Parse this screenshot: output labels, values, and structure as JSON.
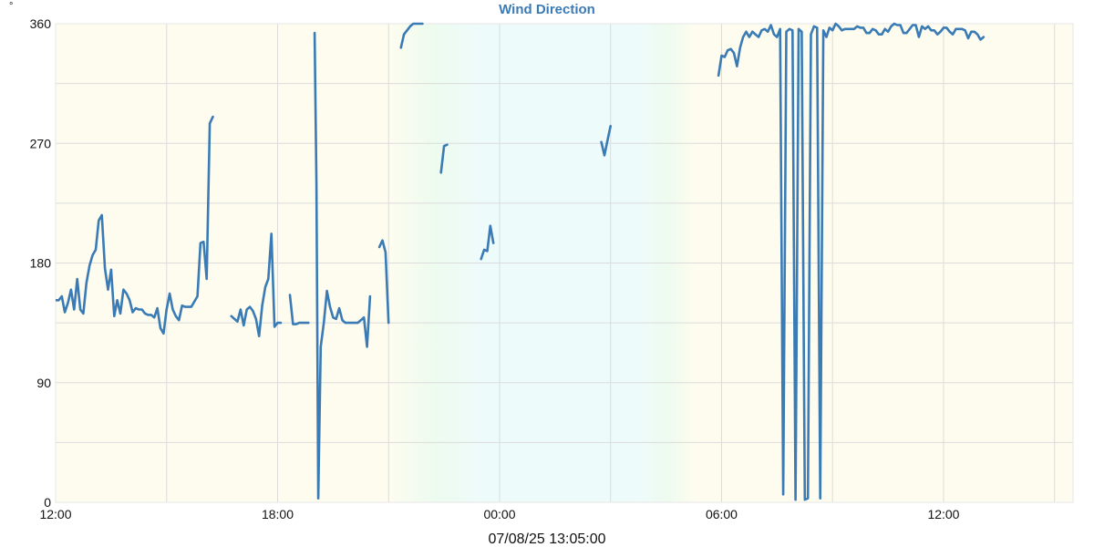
{
  "chart_data": {
    "type": "line",
    "title": "Wind Direction",
    "ylabel": "°",
    "xlabel": "",
    "ylim": [
      0,
      360
    ],
    "xlim": [
      "07/07/25 12:00",
      "07/08/25 15:30"
    ],
    "y_ticks": [
      {
        "value": 0,
        "label": "0"
      },
      {
        "value": 90,
        "label": "90"
      },
      {
        "value": 180,
        "label": "180"
      },
      {
        "value": 270,
        "label": "270"
      },
      {
        "value": 360,
        "label": "360"
      }
    ],
    "x_ticks": [
      {
        "value": "07/07/25 12:00",
        "label": "12:00"
      },
      {
        "value": "07/07/25 18:00",
        "label": "18:00"
      },
      {
        "value": "07/08/25 00:00",
        "label": "00:00"
      },
      {
        "value": "07/08/25 06:00",
        "label": "06:00"
      },
      {
        "value": "07/08/25 12:00",
        "label": "12:00"
      }
    ],
    "grid": true,
    "timestamp": "07/08/25 13:05:00",
    "background_bands": [
      {
        "start": "07/07/25 12:00",
        "end": "07/07/25 21:00",
        "kind": "day"
      },
      {
        "start": "07/07/25 21:00",
        "end": "07/07/25 23:30",
        "kind": "dusk"
      },
      {
        "start": "07/07/25 23:30",
        "end": "07/08/25 03:45",
        "kind": "night"
      },
      {
        "start": "07/08/25 03:45",
        "end": "07/08/25 05:15",
        "kind": "dawn"
      },
      {
        "start": "07/08/25 05:15",
        "end": "07/08/25 15:30",
        "kind": "day"
      }
    ],
    "series": [
      {
        "segments": [
          [
            [
              "07/07/25 12:00",
              152
            ],
            [
              "07/07/25 12:05",
              152
            ],
            [
              "07/07/25 12:10",
              155
            ],
            [
              "07/07/25 12:15",
              143
            ],
            [
              "07/07/25 12:20",
              150
            ],
            [
              "07/07/25 12:25",
              160
            ],
            [
              "07/07/25 12:30",
              145
            ],
            [
              "07/07/25 12:35",
              168
            ],
            [
              "07/07/25 12:40",
              145
            ],
            [
              "07/07/25 12:45",
              142
            ],
            [
              "07/07/25 12:50",
              165
            ],
            [
              "07/07/25 12:55",
              178
            ],
            [
              "07/07/25 13:00",
              186
            ],
            [
              "07/07/25 13:05",
              190
            ],
            [
              "07/07/25 13:10",
              212
            ],
            [
              "07/07/25 13:15",
              216
            ],
            [
              "07/07/25 13:20",
              176
            ],
            [
              "07/07/25 13:25",
              160
            ],
            [
              "07/07/25 13:30",
              175
            ],
            [
              "07/07/25 13:35",
              140
            ],
            [
              "07/07/25 13:40",
              152
            ],
            [
              "07/07/25 13:45",
              142
            ],
            [
              "07/07/25 13:50",
              160
            ],
            [
              "07/07/25 13:55",
              157
            ],
            [
              "07/07/25 14:00",
              152
            ],
            [
              "07/07/25 14:05",
              143
            ],
            [
              "07/07/25 14:10",
              146
            ],
            [
              "07/07/25 14:15",
              145
            ],
            [
              "07/07/25 14:20",
              145
            ],
            [
              "07/07/25 14:25",
              142
            ],
            [
              "07/07/25 14:30",
              141
            ],
            [
              "07/07/25 14:35",
              141
            ],
            [
              "07/07/25 14:40",
              139
            ],
            [
              "07/07/25 14:45",
              146
            ],
            [
              "07/07/25 14:50",
              131
            ],
            [
              "07/07/25 14:55",
              127
            ],
            [
              "07/07/25 15:00",
              145
            ],
            [
              "07/07/25 15:05",
              157
            ],
            [
              "07/07/25 15:10",
              145
            ],
            [
              "07/07/25 15:15",
              140
            ],
            [
              "07/07/25 15:20",
              137
            ],
            [
              "07/07/25 15:25",
              148
            ],
            [
              "07/07/25 15:30",
              147
            ],
            [
              "07/07/25 15:35",
              147
            ],
            [
              "07/07/25 15:40",
              147
            ],
            [
              "07/07/25 15:45",
              151
            ],
            [
              "07/07/25 15:50",
              155
            ],
            [
              "07/07/25 15:55",
              195
            ],
            [
              "07/07/25 16:00",
              196
            ],
            [
              "07/07/25 16:05",
              168
            ],
            [
              "07/07/25 16:10",
              285
            ],
            [
              "07/07/25 16:15",
              290
            ]
          ],
          [
            [
              "07/07/25 16:45",
              140
            ],
            [
              "07/07/25 16:50",
              138
            ],
            [
              "07/07/25 16:55",
              136
            ],
            [
              "07/07/25 17:00",
              145
            ],
            [
              "07/07/25 17:05",
              133
            ],
            [
              "07/07/25 17:10",
              145
            ],
            [
              "07/07/25 17:15",
              147
            ],
            [
              "07/07/25 17:20",
              144
            ],
            [
              "07/07/25 17:25",
              138
            ],
            [
              "07/07/25 17:30",
              125
            ],
            [
              "07/07/25 17:35",
              148
            ],
            [
              "07/07/25 17:40",
              162
            ],
            [
              "07/07/25 17:45",
              168
            ],
            [
              "07/07/25 17:50",
              202
            ],
            [
              "07/07/25 17:55",
              132
            ],
            [
              "07/07/25 18:00",
              135
            ],
            [
              "07/07/25 18:05",
              135
            ]
          ],
          [
            [
              "07/07/25 18:20",
              156
            ],
            [
              "07/07/25 18:25",
              134
            ],
            [
              "07/07/25 18:30",
              134
            ],
            [
              "07/07/25 18:35",
              135
            ],
            [
              "07/07/25 18:40",
              135
            ],
            [
              "07/07/25 18:45",
              135
            ],
            [
              "07/07/25 18:50",
              135
            ]
          ],
          [
            [
              "07/07/25 19:00",
              353
            ],
            [
              "07/07/25 19:03",
              240
            ],
            [
              "07/07/25 19:06",
              3
            ],
            [
              "07/07/25 19:10",
              117
            ],
            [
              "07/07/25 19:15",
              135
            ],
            [
              "07/07/25 19:20",
              159
            ],
            [
              "07/07/25 19:25",
              147
            ],
            [
              "07/07/25 19:30",
              139
            ],
            [
              "07/07/25 19:35",
              138
            ],
            [
              "07/07/25 19:40",
              146
            ],
            [
              "07/07/25 19:45",
              137
            ],
            [
              "07/07/25 19:50",
              135
            ],
            [
              "07/07/25 19:55",
              135
            ],
            [
              "07/07/25 20:00",
              135
            ],
            [
              "07/07/25 20:05",
              135
            ],
            [
              "07/07/25 20:10",
              135
            ],
            [
              "07/07/25 20:15",
              137
            ],
            [
              "07/07/25 20:20",
              139
            ],
            [
              "07/07/25 20:25",
              117
            ],
            [
              "07/07/25 20:30",
              155
            ]
          ],
          [
            [
              "07/07/25 20:45",
              192
            ],
            [
              "07/07/25 20:50",
              197
            ],
            [
              "07/07/25 20:55",
              188
            ],
            [
              "07/07/25 21:00",
              135
            ]
          ],
          [
            [
              "07/07/25 21:20",
              342
            ],
            [
              "07/07/25 21:25",
              352
            ],
            [
              "07/07/25 21:30",
              355
            ],
            [
              "07/07/25 21:35",
              358
            ],
            [
              "07/07/25 21:40",
              360
            ],
            [
              "07/07/25 21:45",
              360
            ],
            [
              "07/07/25 21:50",
              360
            ],
            [
              "07/07/25 21:55",
              360
            ]
          ],
          [
            [
              "07/07/25 22:25",
              248
            ],
            [
              "07/07/25 22:30",
              268
            ],
            [
              "07/07/25 22:35",
              269
            ]
          ],
          [
            [
              "07/07/25 23:30",
              183
            ],
            [
              "07/07/25 23:35",
              190
            ],
            [
              "07/07/25 23:40",
              189
            ],
            [
              "07/07/25 23:45",
              208
            ],
            [
              "07/07/25 23:50",
              195
            ]
          ],
          [
            [
              "07/08/25 02:45",
              271
            ],
            [
              "07/08/25 02:50",
              261
            ],
            [
              "07/08/25 02:55",
              272
            ],
            [
              "07/08/25 03:00",
              283
            ]
          ],
          [
            [
              "07/08/25 05:55",
              321
            ],
            [
              "07/08/25 06:00",
              336
            ],
            [
              "07/08/25 06:05",
              335
            ],
            [
              "07/08/25 06:10",
              340
            ],
            [
              "07/08/25 06:15",
              341
            ],
            [
              "07/08/25 06:20",
              338
            ],
            [
              "07/08/25 06:25",
              328
            ],
            [
              "07/08/25 06:30",
              342
            ],
            [
              "07/08/25 06:35",
              350
            ],
            [
              "07/08/25 06:40",
              354
            ],
            [
              "07/08/25 06:45",
              350
            ],
            [
              "07/08/25 06:50",
              354
            ],
            [
              "07/08/25 06:55",
              352
            ],
            [
              "07/08/25 07:00",
              350
            ],
            [
              "07/08/25 07:05",
              355
            ],
            [
              "07/08/25 07:10",
              356
            ],
            [
              "07/08/25 07:15",
              354
            ],
            [
              "07/08/25 07:20",
              359
            ],
            [
              "07/08/25 07:25",
              352
            ],
            [
              "07/08/25 07:30",
              350
            ],
            [
              "07/08/25 07:35",
              356
            ],
            [
              "07/08/25 07:40",
              6
            ],
            [
              "07/08/25 07:45",
              354
            ],
            [
              "07/08/25 07:50",
              356
            ],
            [
              "07/08/25 07:55",
              355
            ],
            [
              "07/08/25 08:00",
              2
            ],
            [
              "07/08/25 08:05",
              356
            ],
            [
              "07/08/25 08:10",
              354
            ],
            [
              "07/08/25 08:15",
              2
            ],
            [
              "07/08/25 08:20",
              3
            ],
            [
              "07/08/25 08:25",
              352
            ],
            [
              "07/08/25 08:30",
              358
            ],
            [
              "07/08/25 08:35",
              357
            ],
            [
              "07/08/25 08:40",
              3
            ],
            [
              "07/08/25 08:45",
              355
            ],
            [
              "07/08/25 08:50",
              350
            ],
            [
              "07/08/25 08:55",
              357
            ],
            [
              "07/08/25 09:00",
              355
            ],
            [
              "07/08/25 09:05",
              360
            ],
            [
              "07/08/25 09:10",
              358
            ],
            [
              "07/08/25 09:15",
              355
            ],
            [
              "07/08/25 09:20",
              356
            ],
            [
              "07/08/25 09:25",
              356
            ],
            [
              "07/08/25 09:30",
              356
            ],
            [
              "07/08/25 09:35",
              356
            ],
            [
              "07/08/25 09:40",
              358
            ],
            [
              "07/08/25 09:45",
              357
            ],
            [
              "07/08/25 09:50",
              357
            ],
            [
              "07/08/25 09:55",
              353
            ],
            [
              "07/08/25 10:00",
              353
            ],
            [
              "07/08/25 10:05",
              356
            ],
            [
              "07/08/25 10:10",
              355
            ],
            [
              "07/08/25 10:15",
              352
            ],
            [
              "07/08/25 10:20",
              352
            ],
            [
              "07/08/25 10:25",
              356
            ],
            [
              "07/08/25 10:30",
              354
            ],
            [
              "07/08/25 10:35",
              358
            ],
            [
              "07/08/25 10:40",
              360
            ],
            [
              "07/08/25 10:45",
              359
            ],
            [
              "07/08/25 10:50",
              359
            ],
            [
              "07/08/25 10:55",
              353
            ],
            [
              "07/08/25 11:00",
              353
            ],
            [
              "07/08/25 11:05",
              356
            ],
            [
              "07/08/25 11:10",
              359
            ],
            [
              "07/08/25 11:15",
              359
            ],
            [
              "07/08/25 11:20",
              350
            ],
            [
              "07/08/25 11:25",
              358
            ],
            [
              "07/08/25 11:30",
              356
            ],
            [
              "07/08/25 11:35",
              358
            ],
            [
              "07/08/25 11:40",
              355
            ],
            [
              "07/08/25 11:45",
              355
            ],
            [
              "07/08/25 11:50",
              352
            ],
            [
              "07/08/25 11:55",
              354
            ],
            [
              "07/08/25 12:00",
              357
            ],
            [
              "07/08/25 12:05",
              357
            ],
            [
              "07/08/25 12:10",
              354
            ],
            [
              "07/08/25 12:15",
              352
            ],
            [
              "07/08/25 12:20",
              356
            ],
            [
              "07/08/25 12:25",
              356
            ],
            [
              "07/08/25 12:30",
              356
            ],
            [
              "07/08/25 12:35",
              355
            ],
            [
              "07/08/25 12:40",
              349
            ],
            [
              "07/08/25 12:45",
              354
            ],
            [
              "07/08/25 12:50",
              354
            ],
            [
              "07/08/25 12:55",
              352
            ],
            [
              "07/08/25 13:00",
              348
            ],
            [
              "07/08/25 13:05",
              350
            ]
          ]
        ]
      }
    ]
  },
  "colors": {
    "series": "#3a7bb5",
    "title": "#3a7bb5",
    "grid": "#dcdcdc",
    "axis_text": "#111111",
    "day_band": "#fdfcef",
    "night_band": "#eefbfb",
    "twilight_band": "#edfbef",
    "border": "#e6e6e6"
  }
}
